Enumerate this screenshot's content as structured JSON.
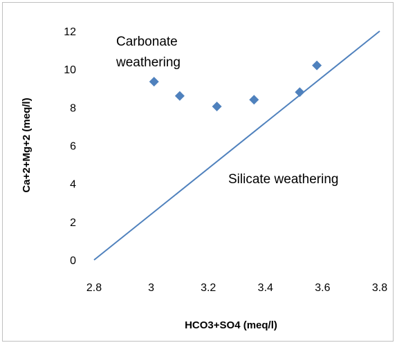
{
  "chart_data": {
    "type": "scatter",
    "xlabel": "HCO3+SO4 (meq/l)",
    "ylabel": "Ca+2+Mg+2 (meq/l)",
    "xlim": [
      2.8,
      3.8
    ],
    "ylim": [
      0,
      12
    ],
    "xticks": [
      "2.8",
      "3",
      "3.2",
      "3.4",
      "3.6",
      "3.8"
    ],
    "yticks": [
      "0",
      "2",
      "4",
      "6",
      "8",
      "10",
      "12"
    ],
    "grid": false,
    "marker_color": "#4F81BD",
    "line_color": "#4F81BD",
    "points": [
      {
        "x": 3.01,
        "y": 9.35
      },
      {
        "x": 3.1,
        "y": 8.6
      },
      {
        "x": 3.23,
        "y": 8.05
      },
      {
        "x": 3.36,
        "y": 8.4
      },
      {
        "x": 3.52,
        "y": 8.8
      },
      {
        "x": 3.58,
        "y": 10.2
      }
    ],
    "reference_line": {
      "x": [
        2.8,
        3.8
      ],
      "y": [
        0,
        12
      ]
    },
    "annotations": {
      "carbonate_line1": "Carbonate",
      "carbonate_line2": "weathering",
      "silicate": "Silicate weathering"
    }
  }
}
